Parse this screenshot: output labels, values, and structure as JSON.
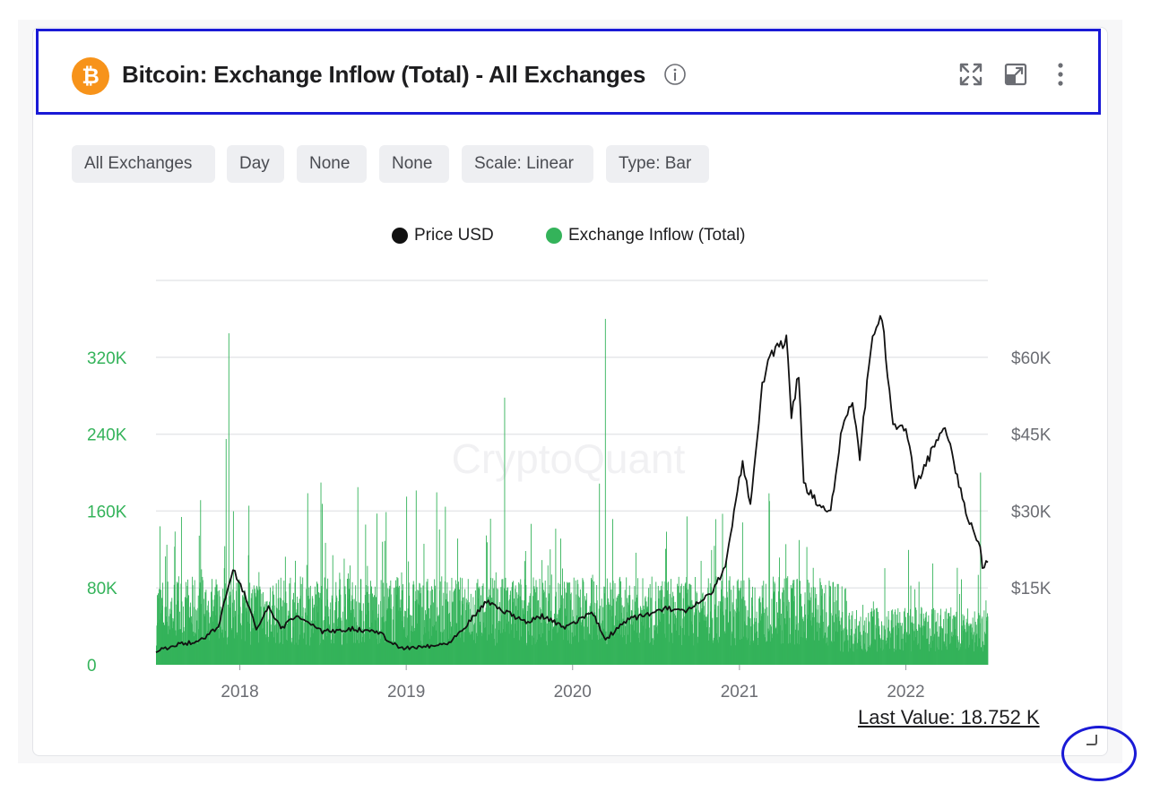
{
  "header": {
    "title": "Bitcoin: Exchange Inflow (Total) - All Exchanges"
  },
  "chips": [
    "All Exchanges",
    "Day",
    "None",
    "None",
    "Scale: Linear",
    "Type: Bar"
  ],
  "legend": {
    "price_label": "Price USD",
    "inflow_label": "Exchange Inflow (Total)"
  },
  "watermark": "CryptoQuant",
  "footer": {
    "last_value": "Last Value: 18.752 K"
  },
  "colors": {
    "accent_btc": "#f7931a",
    "inflow": "#34b35a",
    "price": "#111111",
    "highlight_box": "#1a1ad6"
  },
  "icons": [
    "bitcoin-icon",
    "info-icon",
    "expand-icon",
    "popout-icon",
    "more-vert-icon",
    "resize-handle-icon"
  ],
  "chart_data": {
    "type": "bar",
    "x_axis": {
      "ticks": [
        "2018",
        "2019",
        "2020",
        "2021",
        "2022"
      ],
      "range": [
        "2017-07-01",
        "2022-06-30"
      ]
    },
    "y_left": {
      "label": "Exchange Inflow (Total)",
      "ticks": [
        "0",
        "80K",
        "160K",
        "240K",
        "320K"
      ],
      "range": [
        0,
        400000
      ]
    },
    "y_right": {
      "label": "Price USD",
      "ticks": [
        "$15K",
        "$30K",
        "$45K",
        "$60K"
      ],
      "range": [
        0,
        75000
      ]
    },
    "grid": true,
    "legend_position": "top-center",
    "series": [
      {
        "name": "Price USD",
        "type": "line",
        "axis": "right",
        "points": [
          [
            "2017-07-01",
            2500
          ],
          [
            "2017-08-15",
            4000
          ],
          [
            "2017-10-01",
            4400
          ],
          [
            "2017-11-15",
            7500
          ],
          [
            "2017-12-17",
            19000
          ],
          [
            "2018-01-15",
            13000
          ],
          [
            "2018-02-06",
            7000
          ],
          [
            "2018-03-05",
            11000
          ],
          [
            "2018-04-01",
            7000
          ],
          [
            "2018-05-05",
            9600
          ],
          [
            "2018-07-01",
            6400
          ],
          [
            "2018-09-01",
            7000
          ],
          [
            "2018-11-01",
            6400
          ],
          [
            "2018-12-15",
            3300
          ],
          [
            "2019-02-01",
            3500
          ],
          [
            "2019-04-01",
            4100
          ],
          [
            "2019-05-15",
            8000
          ],
          [
            "2019-06-26",
            12500
          ],
          [
            "2019-08-01",
            10500
          ],
          [
            "2019-09-25",
            8300
          ],
          [
            "2019-10-26",
            9500
          ],
          [
            "2019-12-15",
            7200
          ],
          [
            "2020-02-12",
            10300
          ],
          [
            "2020-03-13",
            5000
          ],
          [
            "2020-05-01",
            8800
          ],
          [
            "2020-07-27",
            11000
          ],
          [
            "2020-09-05",
            10200
          ],
          [
            "2020-10-31",
            13800
          ],
          [
            "2020-12-01",
            19000
          ],
          [
            "2021-01-08",
            40000
          ],
          [
            "2021-01-25",
            31000
          ],
          [
            "2021-02-20",
            55000
          ],
          [
            "2021-03-13",
            60500
          ],
          [
            "2021-04-14",
            63500
          ],
          [
            "2021-04-25",
            49000
          ],
          [
            "2021-05-11",
            57000
          ],
          [
            "2021-05-22",
            35000
          ],
          [
            "2021-06-22",
            31500
          ],
          [
            "2021-07-20",
            30000
          ],
          [
            "2021-08-15",
            47000
          ],
          [
            "2021-09-06",
            51500
          ],
          [
            "2021-09-22",
            40500
          ],
          [
            "2021-10-20",
            65000
          ],
          [
            "2021-11-10",
            67500
          ],
          [
            "2021-12-04",
            47000
          ],
          [
            "2022-01-01",
            46500
          ],
          [
            "2022-01-22",
            35000
          ],
          [
            "2022-03-28",
            47000
          ],
          [
            "2022-05-09",
            31000
          ],
          [
            "2022-06-13",
            22500
          ],
          [
            "2022-06-18",
            19000
          ],
          [
            "2022-06-30",
            20000
          ]
        ]
      },
      {
        "name": "Exchange Inflow (Total)",
        "type": "bar",
        "axis": "left",
        "typical_range": [
          20000,
          140000
        ],
        "spikes": [
          [
            "2017-12-07",
            345000
          ],
          [
            "2017-12-01",
            235000
          ],
          [
            "2019-08-04",
            278000
          ],
          [
            "2020-03-12",
            360000
          ],
          [
            "2022-06-13",
            200000
          ],
          [
            "2019-01-01",
            175000
          ]
        ]
      }
    ]
  }
}
